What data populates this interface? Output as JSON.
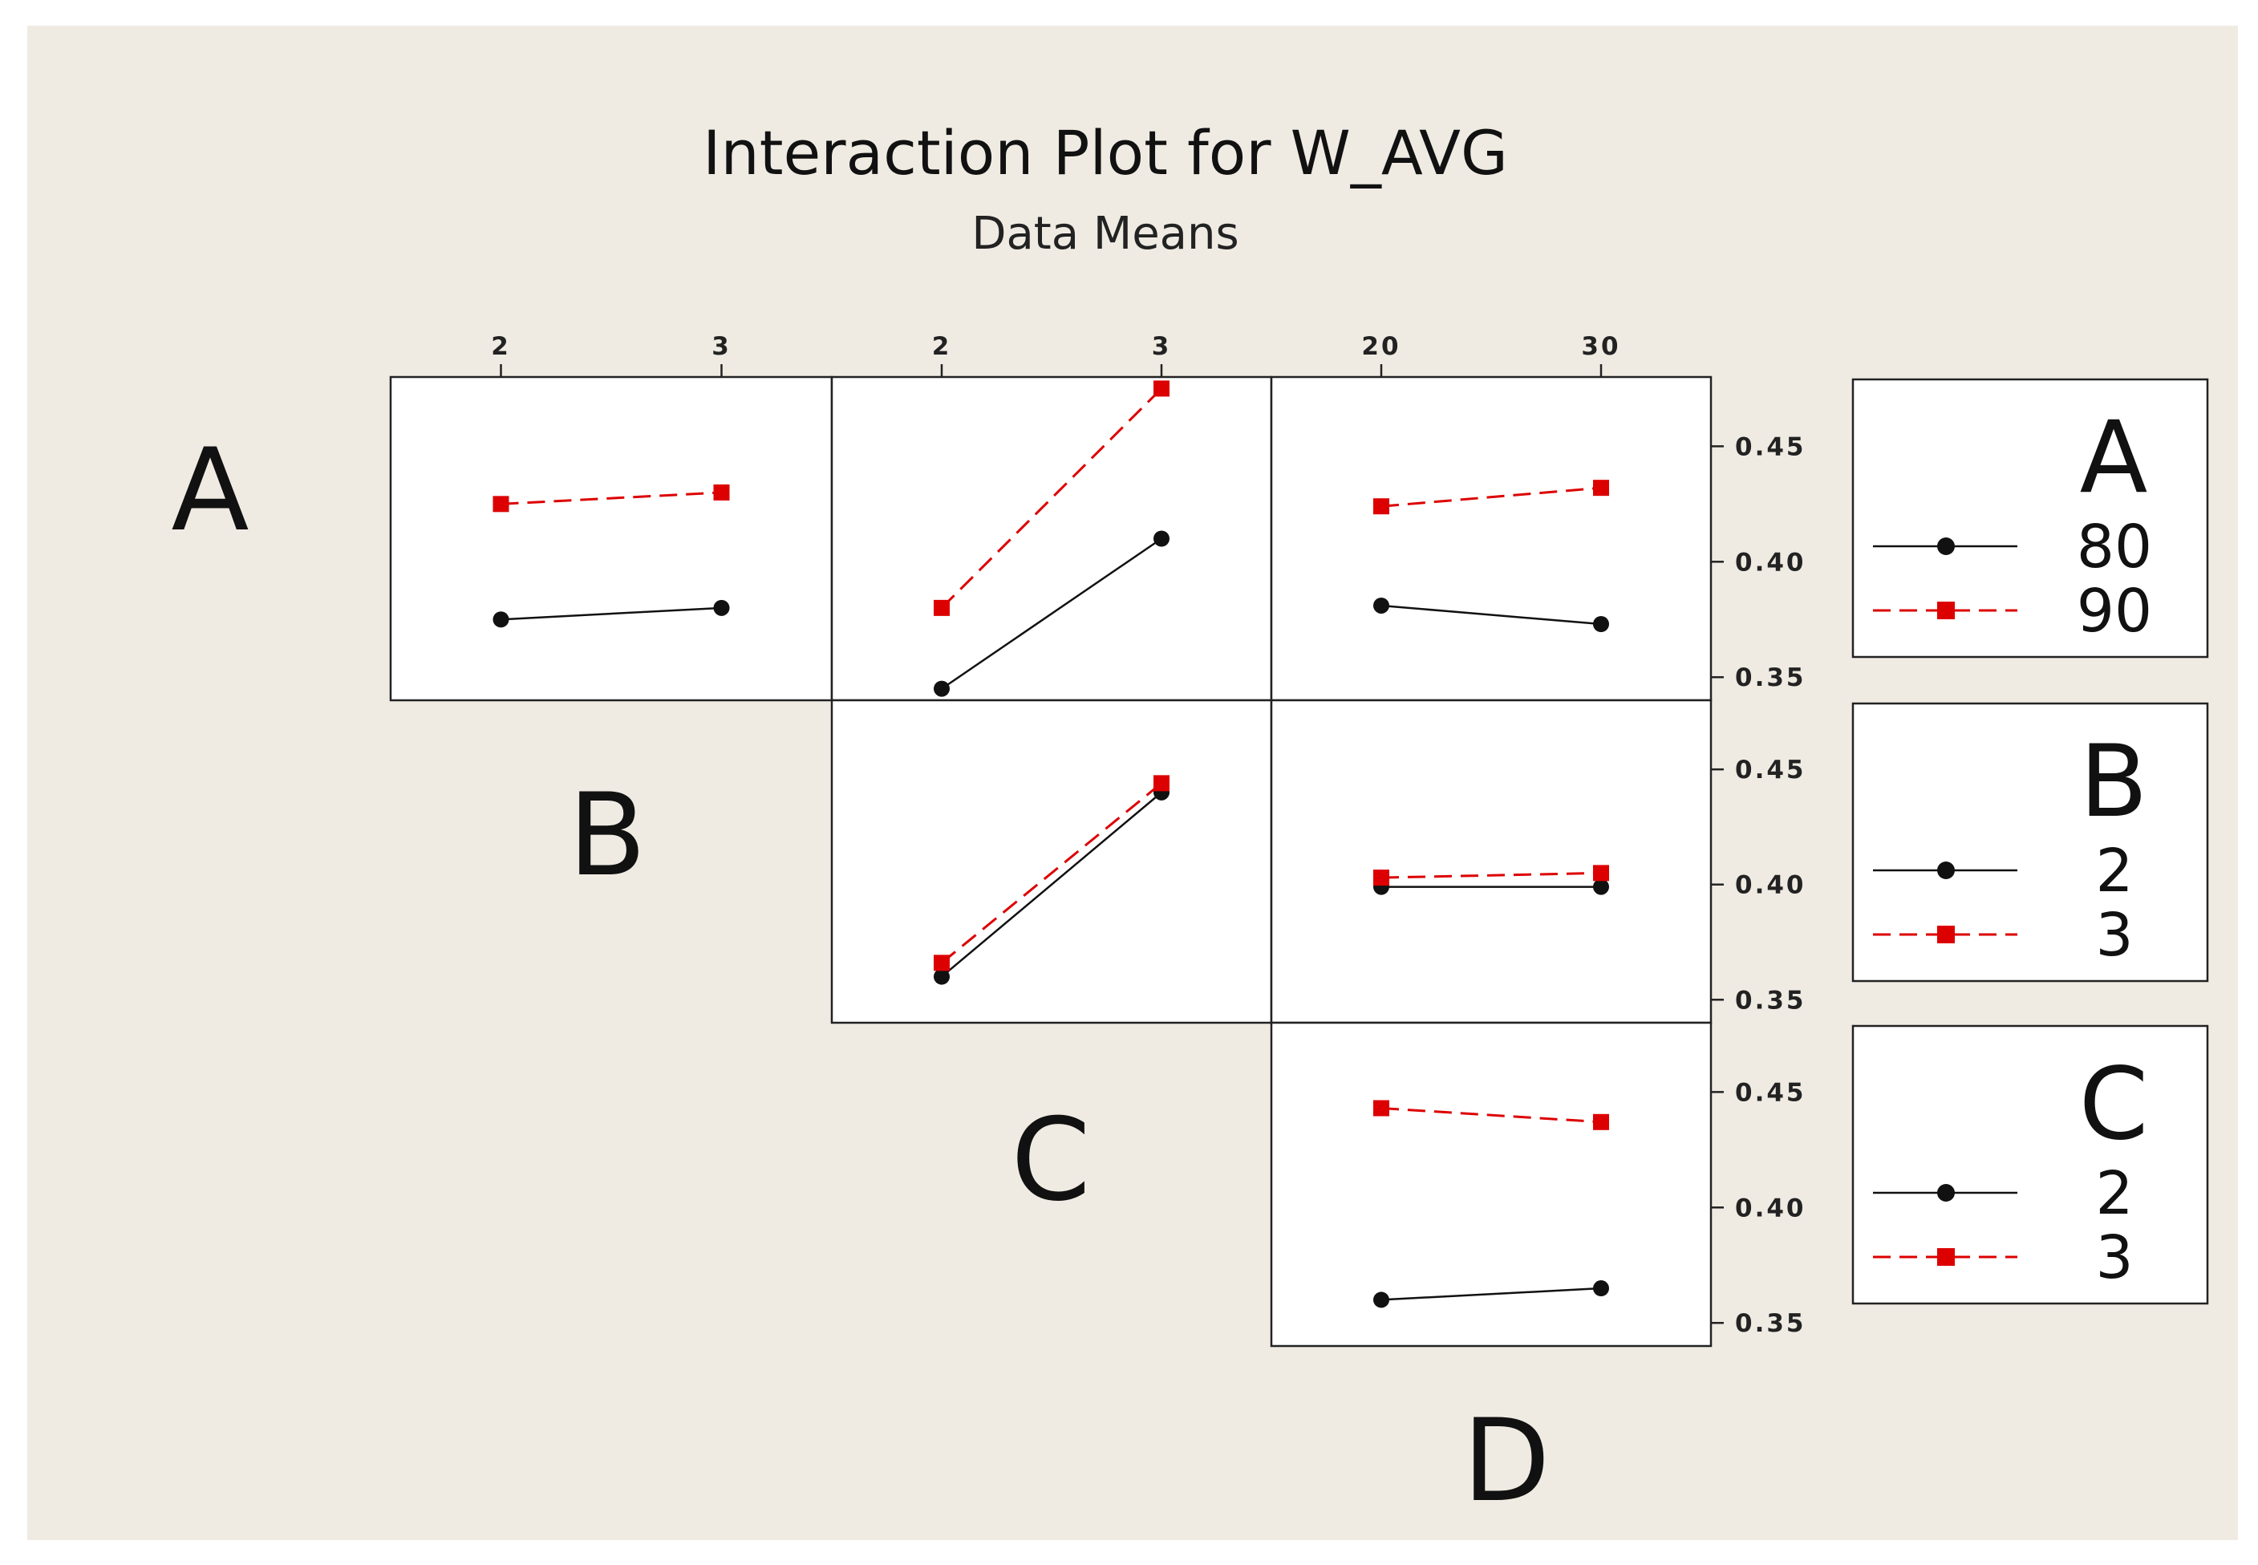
{
  "colors": {
    "background": "#efebe3",
    "panel": "#ffffff",
    "level1": "#111111",
    "level2": "#dd0000"
  },
  "chart_data": {
    "type": "line",
    "title": "Interaction Plot for W_AVG",
    "subtitle": "Data Means",
    "ylim": [
      0.34,
      0.48
    ],
    "y_ticks": [
      0.35,
      0.4,
      0.45
    ],
    "y_tick_labels": [
      "0.35",
      "0.40",
      "0.45"
    ],
    "factors": [
      {
        "name": "A",
        "levels": [
          "80",
          "90"
        ]
      },
      {
        "name": "B",
        "levels": [
          "2",
          "3"
        ]
      },
      {
        "name": "C",
        "levels": [
          "2",
          "3"
        ]
      },
      {
        "name": "D",
        "levels": [
          "20",
          "30"
        ]
      }
    ],
    "panels": [
      {
        "row": 0,
        "col": 0,
        "legend_factor": "A",
        "x_factor": "B",
        "x_levels": [
          "2",
          "3"
        ],
        "series": [
          {
            "level": "80",
            "values": [
              0.375,
              0.38
            ]
          },
          {
            "level": "90",
            "values": [
              0.425,
              0.43
            ]
          }
        ]
      },
      {
        "row": 0,
        "col": 1,
        "legend_factor": "A",
        "x_factor": "C",
        "x_levels": [
          "2",
          "3"
        ],
        "series": [
          {
            "level": "80",
            "values": [
              0.345,
              0.41
            ]
          },
          {
            "level": "90",
            "values": [
              0.38,
              0.475
            ]
          }
        ]
      },
      {
        "row": 0,
        "col": 2,
        "legend_factor": "A",
        "x_factor": "D",
        "x_levels": [
          "20",
          "30"
        ],
        "series": [
          {
            "level": "80",
            "values": [
              0.381,
              0.373
            ]
          },
          {
            "level": "90",
            "values": [
              0.424,
              0.432
            ]
          }
        ]
      },
      {
        "row": 1,
        "col": 1,
        "legend_factor": "B",
        "x_factor": "C",
        "x_levels": [
          "2",
          "3"
        ],
        "series": [
          {
            "level": "2",
            "values": [
              0.36,
              0.44
            ]
          },
          {
            "level": "3",
            "values": [
              0.366,
              0.444
            ]
          }
        ]
      },
      {
        "row": 1,
        "col": 2,
        "legend_factor": "B",
        "x_factor": "D",
        "x_levels": [
          "20",
          "30"
        ],
        "series": [
          {
            "level": "2",
            "values": [
              0.399,
              0.399
            ]
          },
          {
            "level": "3",
            "values": [
              0.403,
              0.405
            ]
          }
        ]
      },
      {
        "row": 2,
        "col": 2,
        "legend_factor": "C",
        "x_factor": "D",
        "x_levels": [
          "20",
          "30"
        ],
        "series": [
          {
            "level": "2",
            "values": [
              0.36,
              0.365
            ]
          },
          {
            "level": "3",
            "values": [
              0.443,
              0.437
            ]
          }
        ]
      }
    ],
    "legends": [
      {
        "factor": "A",
        "levels": [
          "80",
          "90"
        ]
      },
      {
        "factor": "B",
        "levels": [
          "2",
          "3"
        ]
      },
      {
        "factor": "C",
        "levels": [
          "2",
          "3"
        ]
      }
    ],
    "diagonal_labels": [
      "A",
      "B",
      "C",
      "D"
    ]
  }
}
